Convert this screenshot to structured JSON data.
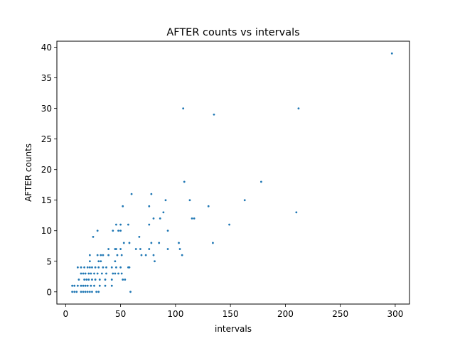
{
  "chart_data": {
    "type": "scatter",
    "title": "AFTER counts vs intervals",
    "xlabel": "intervals",
    "ylabel": "AFTER counts",
    "xlim": [
      -8,
      313
    ],
    "ylim": [
      -2,
      41
    ],
    "xticks": [
      0,
      50,
      100,
      150,
      200,
      250,
      300
    ],
    "yticks": [
      0,
      5,
      10,
      15,
      20,
      25,
      30,
      35,
      40
    ],
    "grid": false,
    "marker_color": "#1f77b4",
    "points": [
      [
        297,
        39
      ],
      [
        212,
        30
      ],
      [
        107,
        30
      ],
      [
        135,
        29
      ],
      [
        178,
        18
      ],
      [
        108,
        18
      ],
      [
        60,
        16
      ],
      [
        78,
        16
      ],
      [
        163,
        15
      ],
      [
        113,
        15
      ],
      [
        91,
        15
      ],
      [
        130,
        14
      ],
      [
        76,
        14
      ],
      [
        52,
        14
      ],
      [
        210,
        13
      ],
      [
        89,
        13
      ],
      [
        115,
        12
      ],
      [
        117,
        12
      ],
      [
        80,
        12
      ],
      [
        86,
        12
      ],
      [
        149,
        11
      ],
      [
        76,
        11
      ],
      [
        57,
        11
      ],
      [
        46,
        11
      ],
      [
        50,
        11
      ],
      [
        93,
        10
      ],
      [
        43,
        10
      ],
      [
        48,
        10
      ],
      [
        50,
        10
      ],
      [
        29,
        10
      ],
      [
        67,
        9
      ],
      [
        25,
        9
      ],
      [
        134,
        8
      ],
      [
        103,
        8
      ],
      [
        85,
        8
      ],
      [
        78,
        8
      ],
      [
        58,
        8
      ],
      [
        53,
        8
      ],
      [
        104,
        7
      ],
      [
        93,
        7
      ],
      [
        76,
        7
      ],
      [
        68,
        7
      ],
      [
        64,
        7
      ],
      [
        50,
        7
      ],
      [
        46,
        7
      ],
      [
        45,
        7
      ],
      [
        39,
        7
      ],
      [
        106,
        6
      ],
      [
        80,
        6
      ],
      [
        73,
        6
      ],
      [
        69,
        6
      ],
      [
        51,
        6
      ],
      [
        47,
        6
      ],
      [
        39,
        6
      ],
      [
        34,
        6
      ],
      [
        32,
        6
      ],
      [
        29,
        6
      ],
      [
        22,
        6
      ],
      [
        81,
        5
      ],
      [
        45,
        5
      ],
      [
        32,
        5
      ],
      [
        30,
        5
      ],
      [
        22,
        5
      ],
      [
        57,
        4
      ],
      [
        58,
        4
      ],
      [
        50,
        4
      ],
      [
        46,
        4
      ],
      [
        42,
        4
      ],
      [
        37,
        4
      ],
      [
        34,
        4
      ],
      [
        30,
        4
      ],
      [
        27,
        4
      ],
      [
        24,
        4
      ],
      [
        22,
        4
      ],
      [
        20,
        4
      ],
      [
        17,
        4
      ],
      [
        14,
        4
      ],
      [
        11,
        4
      ],
      [
        51,
        3
      ],
      [
        48,
        3
      ],
      [
        45,
        3
      ],
      [
        43,
        3
      ],
      [
        37,
        3
      ],
      [
        33,
        3
      ],
      [
        29,
        3
      ],
      [
        26,
        3
      ],
      [
        23,
        3
      ],
      [
        21,
        3
      ],
      [
        18,
        3
      ],
      [
        16,
        3
      ],
      [
        14,
        3
      ],
      [
        54,
        2
      ],
      [
        52,
        2
      ],
      [
        42,
        2
      ],
      [
        36,
        2
      ],
      [
        31,
        2
      ],
      [
        27,
        2
      ],
      [
        24,
        2
      ],
      [
        21,
        2
      ],
      [
        19,
        2
      ],
      [
        17,
        2
      ],
      [
        12,
        2
      ],
      [
        42,
        1
      ],
      [
        36,
        1
      ],
      [
        31,
        1
      ],
      [
        26,
        1
      ],
      [
        23,
        1
      ],
      [
        20,
        1
      ],
      [
        18,
        1
      ],
      [
        16,
        1
      ],
      [
        14,
        1
      ],
      [
        11,
        1
      ],
      [
        8,
        1
      ],
      [
        6,
        1
      ],
      [
        59,
        0
      ],
      [
        30,
        0
      ],
      [
        28,
        0
      ],
      [
        24,
        0
      ],
      [
        22,
        0
      ],
      [
        20,
        0
      ],
      [
        18,
        0
      ],
      [
        16,
        0
      ],
      [
        14,
        0
      ],
      [
        10,
        0
      ],
      [
        8,
        0
      ],
      [
        6,
        0
      ]
    ]
  }
}
